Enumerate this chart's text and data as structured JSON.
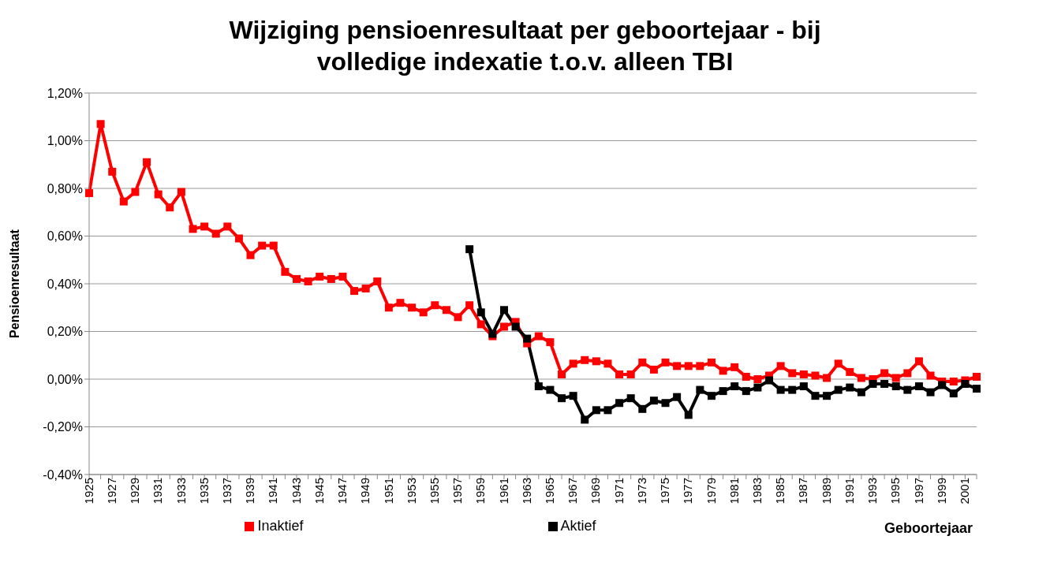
{
  "chart_data": {
    "type": "line",
    "title": "Wijziging pensioenresultaat per geboortejaar - bij volledige indexatie t.o.v. alleen TBI",
    "xlabel": "Geboortejaar",
    "ylabel": "Pensioenresultaat",
    "categories": [
      "1925",
      null,
      "1927",
      null,
      "1929",
      null,
      "1931",
      null,
      "1933",
      null,
      "1935",
      null,
      "1937",
      null,
      "1939",
      null,
      "1941",
      null,
      "1943",
      null,
      "1945",
      null,
      "1947",
      null,
      "1949",
      null,
      "1951",
      null,
      "1953",
      null,
      "1955",
      null,
      "1957",
      null,
      "1959",
      null,
      "1961",
      null,
      "1963",
      null,
      "1965",
      null,
      "1967",
      null,
      "1969",
      null,
      "1971",
      null,
      "1973",
      null,
      "1975",
      null,
      "1977",
      null,
      "1979",
      null,
      "1981",
      null,
      "1983",
      null,
      "1985",
      null,
      "1987",
      null,
      "1989",
      null,
      "1991",
      null,
      "1993",
      null,
      "1995",
      null,
      "1997",
      null,
      "1999",
      null,
      "2001",
      null
    ],
    "series": [
      {
        "name": "Inaktief",
        "color": "#ff0000",
        "values": [
          0.78,
          1.07,
          0.87,
          0.745,
          0.785,
          0.91,
          0.775,
          0.72,
          0.785,
          0.63,
          0.64,
          0.61,
          0.64,
          0.59,
          0.52,
          0.56,
          0.56,
          0.45,
          0.42,
          0.41,
          0.43,
          0.42,
          0.43,
          0.37,
          0.38,
          0.41,
          0.3,
          0.32,
          0.3,
          0.28,
          0.31,
          0.29,
          0.26,
          0.31,
          0.23,
          0.18,
          0.22,
          0.24,
          0.15,
          0.18,
          0.155,
          0.02,
          0.065,
          0.08,
          0.075,
          0.065,
          0.02,
          0.02,
          0.07,
          0.04,
          0.07,
          0.055,
          0.055,
          0.055,
          0.07,
          0.035,
          0.05,
          0.01,
          0.0,
          0.015,
          0.055,
          0.025,
          0.02,
          0.015,
          0.005,
          0.065,
          0.03,
          0.005,
          0.0,
          0.025,
          0.005,
          0.025,
          0.075,
          0.015,
          -0.01,
          -0.01,
          -0.005,
          0.01
        ]
      },
      {
        "name": "Aktief",
        "color": "#000000",
        "values": [
          null,
          null,
          null,
          null,
          null,
          null,
          null,
          null,
          null,
          null,
          null,
          null,
          null,
          null,
          null,
          null,
          null,
          null,
          null,
          null,
          null,
          null,
          null,
          null,
          null,
          null,
          null,
          null,
          null,
          null,
          null,
          null,
          null,
          0.545,
          0.28,
          0.19,
          0.29,
          0.22,
          0.17,
          -0.03,
          -0.045,
          -0.08,
          -0.07,
          -0.17,
          -0.13,
          -0.13,
          -0.1,
          -0.08,
          -0.125,
          -0.09,
          -0.1,
          -0.075,
          -0.15,
          -0.045,
          -0.07,
          -0.05,
          -0.03,
          -0.05,
          -0.035,
          -0.005,
          -0.045,
          -0.045,
          -0.03,
          -0.07,
          -0.07,
          -0.045,
          -0.035,
          -0.055,
          -0.02,
          -0.02,
          -0.03,
          -0.045,
          -0.03,
          -0.055,
          -0.025,
          -0.06,
          -0.02,
          -0.04
        ]
      }
    ],
    "ylim": [
      -0.4,
      1.2
    ],
    "yticks": [
      {
        "value": -0.4,
        "label": "-0,40%"
      },
      {
        "value": -0.2,
        "label": "-0,20%"
      },
      {
        "value": 0,
        "label": "0,00%"
      },
      {
        "value": 0.2,
        "label": "0,20%"
      },
      {
        "value": 0.4,
        "label": "0,40%"
      },
      {
        "value": 0.6,
        "label": "0,60%"
      },
      {
        "value": 0.8,
        "label": "0,80%"
      },
      {
        "value": 1.0,
        "label": "1,00%"
      },
      {
        "value": 1.2,
        "label": "1,20%"
      }
    ],
    "grid": "y",
    "legend": "bottom",
    "marker": "square",
    "line_style": "solid"
  }
}
